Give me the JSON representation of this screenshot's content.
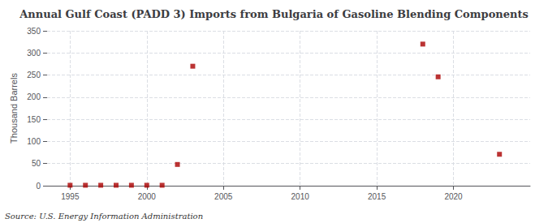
{
  "chart_data": {
    "type": "scatter",
    "title": "Annual Gulf Coast (PADD 3) Imports from Bulgaria of Gasoline Blending Components",
    "ylabel": "Thousand Barrels",
    "source": "Source: U.S. Energy Information Administration",
    "x": [
      1995,
      1996,
      1997,
      1998,
      1999,
      2000,
      2001,
      2002,
      2003,
      2018,
      2019,
      2023
    ],
    "values": [
      1,
      1,
      1,
      1,
      1,
      1,
      1,
      48,
      270,
      320,
      246,
      71
    ],
    "color": "#aa0000",
    "marker": "square",
    "xlim": [
      1993.5,
      2025
    ],
    "xticks": [
      1995,
      2000,
      2005,
      2010,
      2015,
      2020
    ],
    "ylim": [
      0,
      350
    ],
    "yticks": [
      0,
      50,
      100,
      150,
      200,
      250,
      300,
      350
    ],
    "grid": true
  }
}
